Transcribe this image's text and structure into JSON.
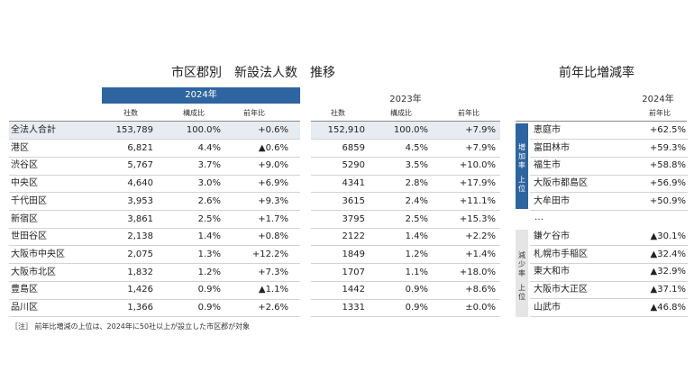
{
  "main_title": "市区郡別　新設法人数　推移",
  "side_title": "前年比増減率",
  "year_2024": "2024年",
  "year_2023": "2023年",
  "side_year": "2024年",
  "col_headers": {
    "count": "社数",
    "ratio": "構成比",
    "yoy": "前年比"
  },
  "side_col_header": "前年比",
  "rows": [
    {
      "name": "全法人合計",
      "c24": "153,789",
      "r24": "100.0%",
      "y24": "+0.6%",
      "c23": "152,910",
      "r23": "100.0%",
      "y23": "+7.9%"
    },
    {
      "name": "港区",
      "c24": "6,821",
      "r24": "4.4%",
      "y24": "▲0.6%",
      "c23": "6859",
      "r23": "4.5%",
      "y23": "+7.9%"
    },
    {
      "name": "渋谷区",
      "c24": "5,767",
      "r24": "3.7%",
      "y24": "+9.0%",
      "c23": "5290",
      "r23": "3.5%",
      "y23": "+10.0%"
    },
    {
      "name": "中央区",
      "c24": "4,640",
      "r24": "3.0%",
      "y24": "+6.9%",
      "c23": "4341",
      "r23": "2.8%",
      "y23": "+17.9%"
    },
    {
      "name": "千代田区",
      "c24": "3,953",
      "r24": "2.6%",
      "y24": "+9.3%",
      "c23": "3615",
      "r23": "2.4%",
      "y23": "+11.1%"
    },
    {
      "name": "新宿区",
      "c24": "3,861",
      "r24": "2.5%",
      "y24": "+1.7%",
      "c23": "3795",
      "r23": "2.5%",
      "y23": "+15.3%"
    },
    {
      "name": "世田谷区",
      "c24": "2,138",
      "r24": "1.4%",
      "y24": "+0.8%",
      "c23": "2122",
      "r23": "1.4%",
      "y23": "+2.2%"
    },
    {
      "name": "大阪市中央区",
      "c24": "2,075",
      "r24": "1.3%",
      "y24": "+12.2%",
      "c23": "1849",
      "r23": "1.2%",
      "y23": "+1.4%"
    },
    {
      "name": "大阪市北区",
      "c24": "1,832",
      "r24": "1.2%",
      "y24": "+7.3%",
      "c23": "1707",
      "r23": "1.1%",
      "y23": "+18.0%"
    },
    {
      "name": "豊島区",
      "c24": "1,426",
      "r24": "0.9%",
      "y24": "▲1.1%",
      "c23": "1442",
      "r23": "0.9%",
      "y23": "+8.6%"
    },
    {
      "name": "品川区",
      "c24": "1,366",
      "r24": "0.9%",
      "y24": "+2.6%",
      "c23": "1331",
      "r23": "0.9%",
      "y23": "±0.0%"
    }
  ],
  "increase_label": "増加率上位",
  "decrease_label": "減少率上位",
  "increase_rows": [
    {
      "name": "恵庭市",
      "value": "+62.5%"
    },
    {
      "name": "富田林市",
      "value": "+59.3%"
    },
    {
      "name": "福生市",
      "value": "+58.8%"
    },
    {
      "name": "大阪市都島区",
      "value": "+56.9%"
    },
    {
      "name": "大牟田市",
      "value": "+50.9%"
    }
  ],
  "ellipsis": "…",
  "decrease_rows": [
    {
      "name": "鎌ケ谷市",
      "value": "▲30.1%"
    },
    {
      "name": "札幌市手稲区",
      "value": "▲32.4%"
    },
    {
      "name": "東大和市",
      "value": "▲32.9%"
    },
    {
      "name": "大阪市大正区",
      "value": "▲37.1%"
    },
    {
      "name": "山武市",
      "value": "▲46.8%"
    }
  ],
  "note": "［注］ 前年比増減の上位は、2024年に50社以上が設立した市区郡が対象",
  "colors": {
    "accent": "#2e64a0",
    "shade": "#e7ecf2"
  }
}
